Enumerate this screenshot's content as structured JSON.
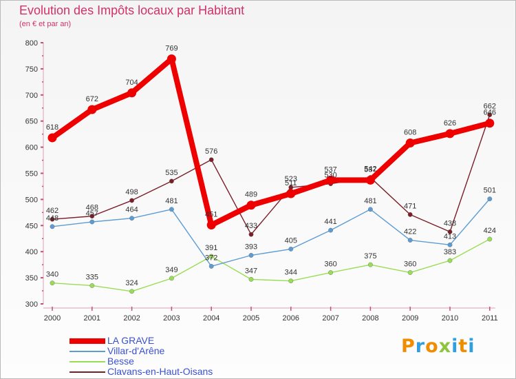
{
  "chart_data": {
    "type": "line",
    "title": "Evolution des Impôts locaux par Habitant",
    "subtitle": "(en € et par an)",
    "xlabel": "",
    "ylabel": "",
    "categories": [
      "2000",
      "2001",
      "2002",
      "2003",
      "2004",
      "2005",
      "2006",
      "2007",
      "2008",
      "2009",
      "2010",
      "2011"
    ],
    "ylim": [
      300,
      800
    ],
    "yticks": [
      300,
      350,
      400,
      450,
      500,
      550,
      600,
      650,
      700,
      750,
      800
    ],
    "grid": false,
    "legend_position": "bottom-left",
    "series": [
      {
        "name": "LA GRAVE",
        "color": "#ee0000",
        "values": [
          618,
          672,
          704,
          769,
          451,
          489,
          511,
          537,
          537,
          608,
          626,
          646
        ]
      },
      {
        "name": "Villar-d'Arêne",
        "color": "#5d9cd3",
        "values": [
          448,
          457,
          464,
          481,
          372,
          393,
          405,
          441,
          481,
          422,
          413,
          501
        ]
      },
      {
        "name": "Besse",
        "color": "#99dd55",
        "values": [
          340,
          335,
          324,
          349,
          391,
          347,
          344,
          360,
          375,
          360,
          383,
          424
        ]
      },
      {
        "name": "Clavans-en-Haut-Oisans",
        "color": "#7a1e28",
        "values": [
          462,
          468,
          498,
          535,
          576,
          433,
          523,
          530,
          542,
          471,
          438,
          662
        ]
      }
    ]
  },
  "brand": {
    "letters": [
      "P",
      "r",
      "o",
      "x",
      "i",
      "t",
      "i"
    ],
    "colors": [
      "#f08c00",
      "#2f9fe0",
      "#f08c00",
      "#8cc63f",
      "#2f9fe0",
      "#f08c00",
      "#2f9fe0"
    ]
  }
}
